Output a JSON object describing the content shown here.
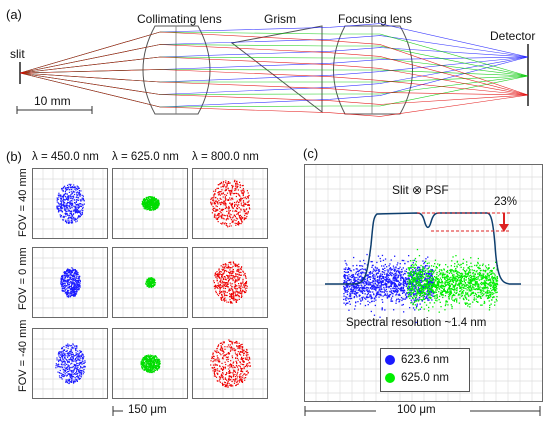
{
  "panel_a": {
    "tag": "(a)",
    "labels": {
      "slit": "slit",
      "collimating_lens": "Collimating lens",
      "grism": "Grism",
      "focusing_lens": "Focusing lens",
      "detector": "Detector"
    },
    "scale_bar": "10 mm",
    "ray_colors": {
      "blue": "#1a1aff",
      "green": "#00c800",
      "red": "#e00000"
    }
  },
  "panel_b": {
    "tag": "(b)",
    "columns": [
      "λ = 450.0 nm",
      "λ = 625.0 nm",
      "λ = 800.0 nm"
    ],
    "rows": [
      "FOV = 40 mm",
      "FOV = 0 mm",
      "FOV = -40 mm"
    ],
    "scale_bar": "150 μm",
    "column_colors": [
      "#1a1aff",
      "#00dd00",
      "#ee0000"
    ]
  },
  "panel_c": {
    "tag": "(c)",
    "psf_label": "Slit ⊗ PSF",
    "dip_label": "23%",
    "resolution_label": "Spectral resolution ~1.4 nm",
    "legend": [
      {
        "label": "623.6 nm",
        "color": "#1a1aff"
      },
      {
        "label": "625.0 nm",
        "color": "#00ee00"
      }
    ],
    "scale_bar": "100 μm"
  }
}
